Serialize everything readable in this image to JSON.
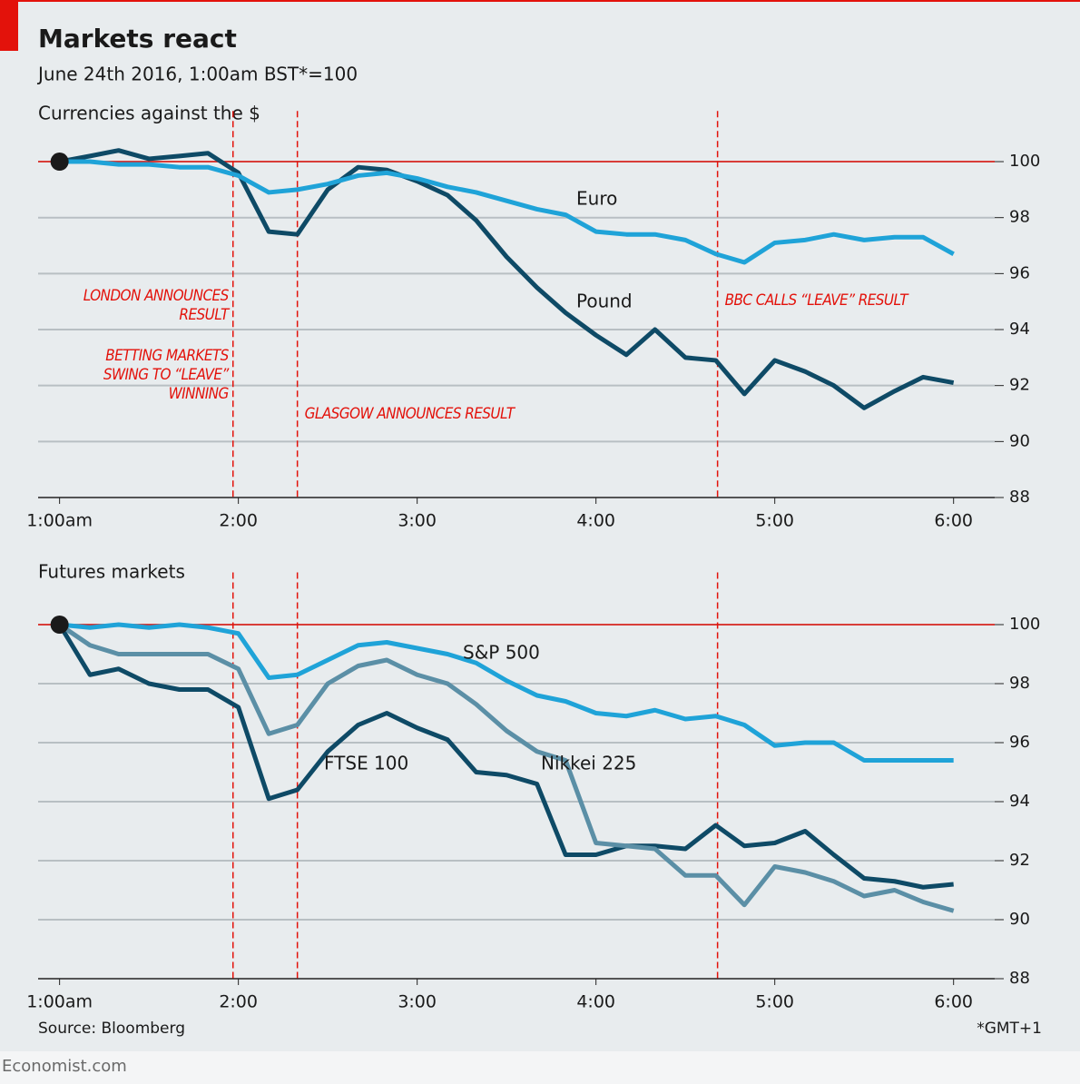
{
  "title": "Markets react",
  "subtitle": "June 24th 2016, 1:00am BST*=100",
  "source": "Source: Bloomberg",
  "footnote": "*GMT+1",
  "brand": "Economist.com",
  "chart_data": [
    {
      "type": "line",
      "title": "Currencies against the $",
      "x": [
        1,
        1.17,
        1.33,
        1.5,
        1.67,
        1.83,
        2,
        2.17,
        2.33,
        2.5,
        2.67,
        2.83,
        3,
        3.17,
        3.33,
        3.5,
        3.67,
        3.83,
        4,
        4.17,
        4.33,
        4.5,
        4.67,
        4.83,
        5,
        5.17,
        5.33,
        5.5,
        5.67,
        5.83,
        6
      ],
      "series": [
        {
          "name": "Euro",
          "color": "#1fa3d8",
          "values": [
            100,
            100.0,
            99.9,
            99.9,
            99.8,
            99.8,
            99.5,
            98.9,
            99.0,
            99.2,
            99.5,
            99.6,
            99.4,
            99.1,
            98.9,
            98.6,
            98.3,
            98.1,
            97.5,
            97.4,
            97.4,
            97.2,
            96.7,
            96.4,
            97.1,
            97.2,
            97.4,
            97.2,
            97.3,
            97.3,
            96.7
          ]
        },
        {
          "name": "Pound",
          "color": "#0e4a66",
          "values": [
            100,
            100.2,
            100.4,
            100.1,
            100.2,
            100.3,
            99.6,
            97.5,
            97.4,
            99.0,
            99.8,
            99.7,
            99.3,
            98.8,
            97.9,
            96.6,
            95.5,
            94.6,
            93.8,
            93.1,
            94.0,
            93.0,
            92.9,
            91.7,
            92.9,
            92.5,
            92.0,
            91.2,
            91.8,
            92.3,
            92.1
          ]
        }
      ],
      "xlim": [
        0.88,
        6.23
      ],
      "xticks": [
        {
          "value": 1,
          "label": "1:00am"
        },
        {
          "value": 2,
          "label": "2:00"
        },
        {
          "value": 3,
          "label": "3:00"
        },
        {
          "value": 4,
          "label": "4:00"
        },
        {
          "value": 5,
          "label": "5:00"
        },
        {
          "value": 6,
          "label": "6:00"
        }
      ],
      "ylim": [
        88,
        101
      ],
      "yticks": [
        88,
        90,
        92,
        94,
        96,
        98,
        100
      ],
      "grid": true,
      "reference_line": 100,
      "events": [
        {
          "x": 1.97,
          "labels": [
            "LONDON ANNOUNCES RESULT",
            "BETTING MARKETS SWING TO “LEAVE” WINNING"
          ]
        },
        {
          "x": 2.33,
          "labels": [
            "GLASGOW ANNOUNCES RESULT"
          ]
        },
        {
          "x": 4.68,
          "labels": [
            "BBC CALLS “LEAVE” RESULT"
          ]
        }
      ]
    },
    {
      "type": "line",
      "title": "Futures markets",
      "x": [
        1,
        1.17,
        1.33,
        1.5,
        1.67,
        1.83,
        2,
        2.17,
        2.33,
        2.5,
        2.67,
        2.83,
        3,
        3.17,
        3.33,
        3.5,
        3.67,
        3.83,
        4,
        4.17,
        4.33,
        4.5,
        4.67,
        4.83,
        5,
        5.17,
        5.33,
        5.5,
        5.67,
        5.83,
        6
      ],
      "series": [
        {
          "name": "S&P 500",
          "color": "#1fa3d8",
          "values": [
            100,
            99.9,
            100.0,
            99.9,
            100.0,
            99.9,
            99.7,
            98.2,
            98.3,
            98.8,
            99.3,
            99.4,
            99.2,
            99.0,
            98.7,
            98.1,
            97.6,
            97.4,
            97.0,
            96.9,
            97.1,
            96.8,
            96.9,
            96.6,
            95.9,
            96.0,
            96.0,
            95.4,
            95.4,
            95.4,
            95.4
          ]
        },
        {
          "name": "Nikkei 225",
          "color": "#5b8fa6",
          "values": [
            100,
            99.3,
            99.0,
            99.0,
            99.0,
            99.0,
            98.5,
            96.3,
            96.6,
            98.0,
            98.6,
            98.8,
            98.3,
            98.0,
            97.3,
            96.4,
            95.7,
            95.4,
            92.6,
            92.5,
            92.4,
            91.5,
            91.5,
            90.5,
            91.8,
            91.6,
            91.3,
            90.8,
            91.0,
            90.6,
            90.3
          ]
        },
        {
          "name": "FTSE 100",
          "color": "#0e4a66",
          "values": [
            100,
            98.3,
            98.5,
            98.0,
            97.8,
            97.8,
            97.2,
            94.1,
            94.4,
            95.7,
            96.6,
            97.0,
            96.5,
            96.1,
            95.0,
            94.9,
            94.6,
            92.2,
            92.2,
            92.5,
            92.5,
            92.4,
            93.2,
            92.5,
            92.6,
            93.0,
            92.2,
            91.4,
            91.3,
            91.1,
            91.2
          ]
        }
      ],
      "xlim": [
        0.88,
        6.23
      ],
      "xticks": [
        {
          "value": 1,
          "label": "1:00am"
        },
        {
          "value": 2,
          "label": "2:00"
        },
        {
          "value": 3,
          "label": "3:00"
        },
        {
          "value": 4,
          "label": "4:00"
        },
        {
          "value": 5,
          "label": "5:00"
        },
        {
          "value": 6,
          "label": "6:00"
        }
      ],
      "ylim": [
        88,
        101
      ],
      "yticks": [
        88,
        90,
        92,
        94,
        96,
        98,
        100
      ],
      "grid": true,
      "reference_line": 100,
      "events": [
        {
          "x": 1.97
        },
        {
          "x": 2.33
        },
        {
          "x": 4.68
        }
      ]
    }
  ]
}
